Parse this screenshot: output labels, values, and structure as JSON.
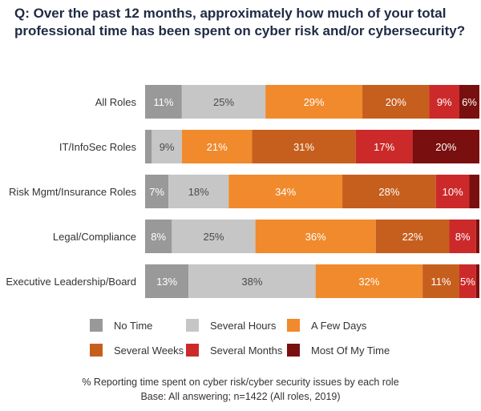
{
  "title_line1": "Q: Over the past 12 months, approximately how much of your total",
  "title_line2": "professional time has been spent on cyber risk and/or cybersecurity?",
  "footnote_line1": "% Reporting time spent on cyber risk/cyber security issues by each role",
  "footnote_line2": "Base: All answering; n=1422 (All roles, 2019)",
  "colors": {
    "No Time": "#999999",
    "Several Hours": "#c6c6c6",
    "A Few Days": "#f08a2c",
    "Several Weeks": "#c65f1e",
    "Several Months": "#cc2a2a",
    "Most Of My Time": "#7a0f0f"
  },
  "chart_data": {
    "type": "bar",
    "orientation": "horizontal",
    "stacked": true,
    "categories": [
      "All Roles",
      "IT/InfoSec Roles",
      "Risk Mgmt/Insurance Roles",
      "Legal/Compliance",
      "Executive Leadership/Board"
    ],
    "series": [
      {
        "name": "No Time",
        "values": [
          11,
          2,
          7,
          8,
          13
        ],
        "labels": [
          "11%",
          "",
          "7%",
          "8%",
          "13%"
        ]
      },
      {
        "name": "Several Hours",
        "values": [
          25,
          9,
          18,
          25,
          38
        ],
        "labels": [
          "25%",
          "9%",
          "18%",
          "25%",
          "38%"
        ]
      },
      {
        "name": "A Few Days",
        "values": [
          29,
          21,
          34,
          36,
          32
        ],
        "labels": [
          "29%",
          "21%",
          "34%",
          "36%",
          "32%"
        ]
      },
      {
        "name": "Several Weeks",
        "values": [
          20,
          31,
          28,
          22,
          11
        ],
        "labels": [
          "20%",
          "31%",
          "28%",
          "22%",
          "11%"
        ]
      },
      {
        "name": "Several Months",
        "values": [
          9,
          17,
          10,
          8,
          5
        ],
        "labels": [
          "9%",
          "17%",
          "10%",
          "8%",
          "5%"
        ]
      },
      {
        "name": "Most Of My Time",
        "values": [
          6,
          20,
          3,
          1,
          1
        ],
        "labels": [
          "6%",
          "20%",
          "",
          "",
          ""
        ]
      }
    ],
    "xlim": [
      0,
      100
    ],
    "legend_position": "bottom"
  }
}
